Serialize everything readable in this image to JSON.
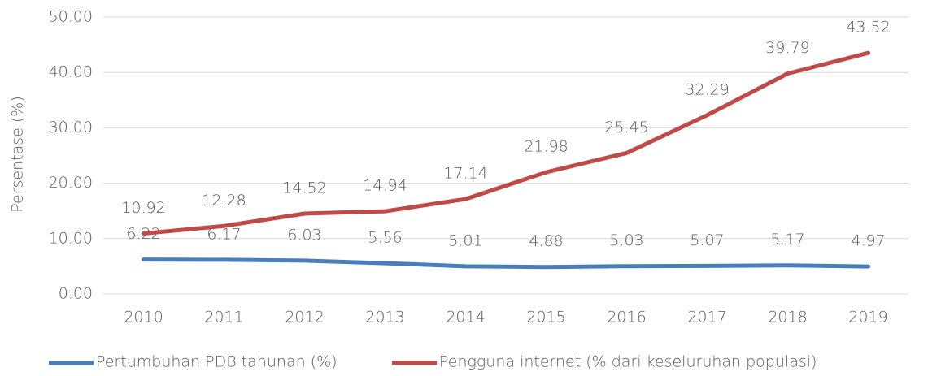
{
  "chart_data": {
    "type": "line",
    "y_label": "Persentase (%)",
    "categories": [
      "2010",
      "2011",
      "2012",
      "2013",
      "2014",
      "2015",
      "2016",
      "2017",
      "2018",
      "2019"
    ],
    "series": [
      {
        "name": "Pertumbuhan PDB tahunan (%)",
        "color": "#4a7ebb",
        "values": [
          6.22,
          6.17,
          6.03,
          5.56,
          5.01,
          4.88,
          5.03,
          5.07,
          5.17,
          4.97
        ]
      },
      {
        "name": "Pengguna internet (% dari keseluruhan populasi)",
        "color": "#be4b48",
        "values": [
          10.92,
          12.28,
          14.52,
          14.94,
          17.14,
          21.98,
          25.45,
          32.29,
          39.79,
          43.52
        ]
      }
    ],
    "ylim": [
      0,
      50
    ],
    "yticks": [
      {
        "value": 0,
        "label": "0.00"
      },
      {
        "value": 10,
        "label": "10.00"
      },
      {
        "value": 20,
        "label": "20.00"
      },
      {
        "value": 30,
        "label": "30.00"
      },
      {
        "value": 40,
        "label": "40.00"
      },
      {
        "value": 50,
        "label": "50.00"
      }
    ],
    "grid": true,
    "legend": "bottom"
  }
}
